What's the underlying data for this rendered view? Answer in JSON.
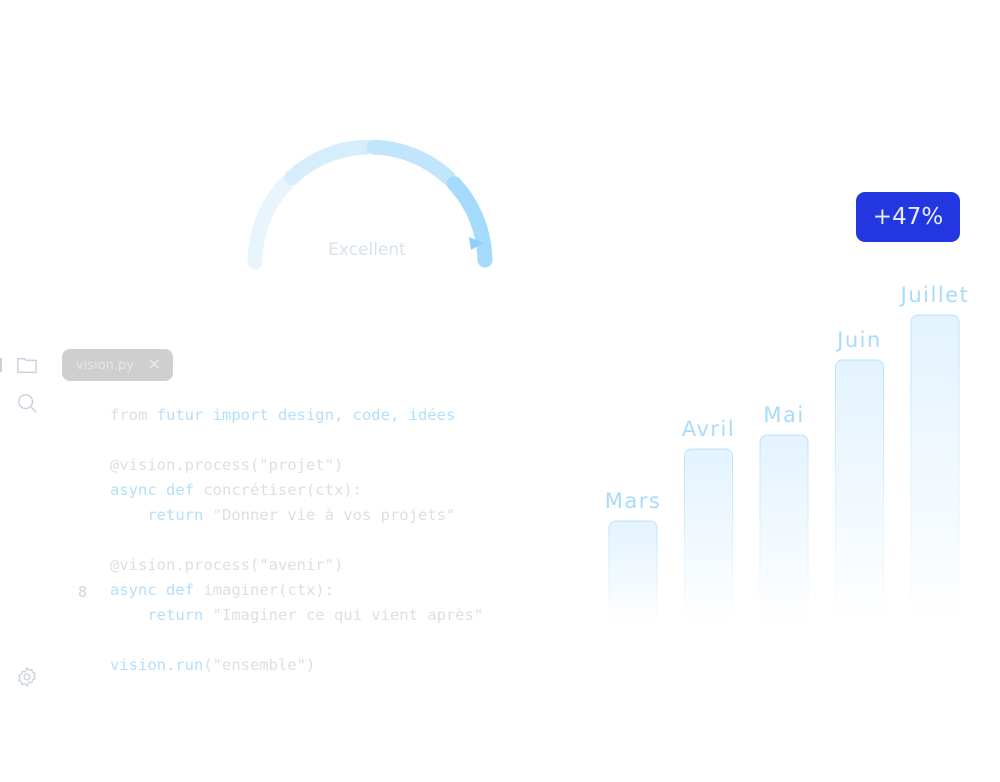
{
  "gauge": {
    "label": "Excellent",
    "segment_colors": [
      "#e8f5fd",
      "#d6eefc",
      "#c1e5fc",
      "#a4dafc"
    ]
  },
  "badge": {
    "text": "+47%",
    "color": "#2337e0"
  },
  "editor": {
    "tab_label": "vision.py",
    "line_number": "8",
    "lines": [
      [
        {
          "t": "from ",
          "k": false
        },
        {
          "t": "futur import design, code, idées",
          "k": true
        }
      ],
      [],
      [
        {
          "t": "@vision.process(\"projet\")",
          "k": false
        }
      ],
      [
        {
          "t": "async def ",
          "k": true
        },
        {
          "t": "concrétiser(ctx):",
          "k": false
        }
      ],
      [
        {
          "t": "    return ",
          "k": true
        },
        {
          "t": "\"Donner vie à vos projets\"",
          "k": false
        }
      ],
      [],
      [
        {
          "t": "@vision.process(\"avenir\")",
          "k": false
        }
      ],
      [
        {
          "t": "async def ",
          "k": true
        },
        {
          "t": "imaginer(ctx):",
          "k": false
        }
      ],
      [
        {
          "t": "    return ",
          "k": true
        },
        {
          "t": "\"Imaginer ce qui vient après\"",
          "k": false
        }
      ],
      [],
      [
        {
          "t": "vision.run",
          "k": true
        },
        {
          "t": "(\"ensemble\")",
          "k": false
        }
      ]
    ]
  },
  "sidebar": {
    "icons": [
      "folder-icon",
      "search-icon",
      "gear-icon"
    ]
  },
  "chart_data": {
    "type": "bar",
    "categories": [
      "Mars",
      "Avril",
      "Mai",
      "Juin",
      "Juillet"
    ],
    "values": [
      94,
      166,
      180,
      255,
      300
    ],
    "title": "",
    "xlabel": "",
    "ylabel": "",
    "grid": false,
    "color": "#b9e2fb"
  }
}
